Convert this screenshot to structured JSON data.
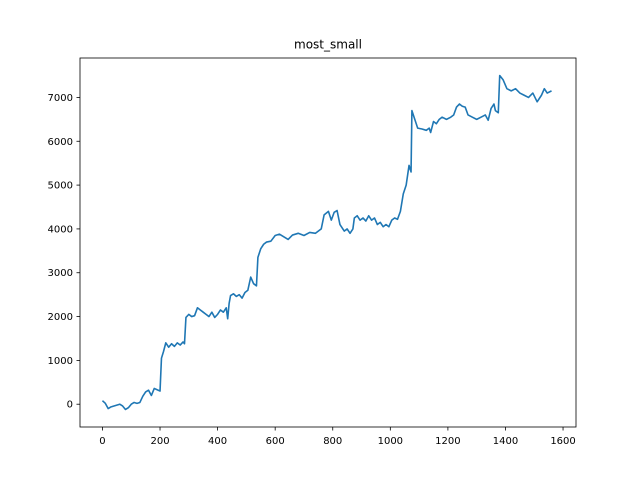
{
  "chart_data": {
    "type": "line",
    "title": "most_small",
    "xlabel": "",
    "ylabel": "",
    "xlim": [
      -78,
      1645
    ],
    "ylim": [
      -520,
      7900
    ],
    "xticks": [
      0,
      200,
      400,
      600,
      800,
      1000,
      1200,
      1400,
      1600
    ],
    "yticks": [
      0,
      1000,
      2000,
      3000,
      4000,
      5000,
      6000,
      7000
    ],
    "grid": false,
    "line_color": "#1f77b4",
    "series": [
      {
        "points": [
          [
            0,
            80
          ],
          [
            10,
            20
          ],
          [
            20,
            -100
          ],
          [
            30,
            -60
          ],
          [
            40,
            -40
          ],
          [
            50,
            -20
          ],
          [
            60,
            0
          ],
          [
            70,
            -40
          ],
          [
            80,
            -120
          ],
          [
            90,
            -80
          ],
          [
            100,
            0
          ],
          [
            110,
            40
          ],
          [
            120,
            20
          ],
          [
            130,
            40
          ],
          [
            140,
            180
          ],
          [
            150,
            280
          ],
          [
            160,
            320
          ],
          [
            170,
            200
          ],
          [
            180,
            360
          ],
          [
            190,
            330
          ],
          [
            200,
            300
          ],
          [
            205,
            1050
          ],
          [
            212,
            1200
          ],
          [
            220,
            1400
          ],
          [
            230,
            1300
          ],
          [
            240,
            1380
          ],
          [
            250,
            1320
          ],
          [
            260,
            1400
          ],
          [
            270,
            1350
          ],
          [
            280,
            1420
          ],
          [
            285,
            1380
          ],
          [
            290,
            1980
          ],
          [
            300,
            2050
          ],
          [
            310,
            2000
          ],
          [
            320,
            2020
          ],
          [
            330,
            2200
          ],
          [
            340,
            2150
          ],
          [
            350,
            2100
          ],
          [
            360,
            2050
          ],
          [
            370,
            2000
          ],
          [
            380,
            2100
          ],
          [
            390,
            1980
          ],
          [
            400,
            2050
          ],
          [
            410,
            2150
          ],
          [
            420,
            2100
          ],
          [
            430,
            2200
          ],
          [
            435,
            1950
          ],
          [
            440,
            2300
          ],
          [
            445,
            2480
          ],
          [
            455,
            2520
          ],
          [
            465,
            2460
          ],
          [
            475,
            2500
          ],
          [
            485,
            2420
          ],
          [
            495,
            2550
          ],
          [
            505,
            2600
          ],
          [
            515,
            2900
          ],
          [
            525,
            2750
          ],
          [
            535,
            2700
          ],
          [
            540,
            3350
          ],
          [
            550,
            3550
          ],
          [
            560,
            3650
          ],
          [
            570,
            3700
          ],
          [
            585,
            3720
          ],
          [
            600,
            3850
          ],
          [
            615,
            3880
          ],
          [
            630,
            3820
          ],
          [
            645,
            3760
          ],
          [
            660,
            3860
          ],
          [
            680,
            3900
          ],
          [
            700,
            3850
          ],
          [
            720,
            3920
          ],
          [
            740,
            3900
          ],
          [
            760,
            4000
          ],
          [
            770,
            4320
          ],
          [
            785,
            4400
          ],
          [
            795,
            4200
          ],
          [
            805,
            4380
          ],
          [
            815,
            4420
          ],
          [
            825,
            4100
          ],
          [
            840,
            3950
          ],
          [
            850,
            4000
          ],
          [
            860,
            3900
          ],
          [
            870,
            4000
          ],
          [
            875,
            4250
          ],
          [
            885,
            4300
          ],
          [
            895,
            4200
          ],
          [
            905,
            4250
          ],
          [
            915,
            4180
          ],
          [
            925,
            4300
          ],
          [
            935,
            4200
          ],
          [
            945,
            4250
          ],
          [
            955,
            4100
          ],
          [
            965,
            4150
          ],
          [
            975,
            4050
          ],
          [
            985,
            4100
          ],
          [
            995,
            4050
          ],
          [
            1005,
            4200
          ],
          [
            1015,
            4250
          ],
          [
            1025,
            4220
          ],
          [
            1035,
            4400
          ],
          [
            1045,
            4800
          ],
          [
            1055,
            5000
          ],
          [
            1065,
            5450
          ],
          [
            1072,
            5300
          ],
          [
            1075,
            6700
          ],
          [
            1085,
            6500
          ],
          [
            1095,
            6300
          ],
          [
            1110,
            6280
          ],
          [
            1125,
            6250
          ],
          [
            1135,
            6300
          ],
          [
            1140,
            6200
          ],
          [
            1150,
            6450
          ],
          [
            1160,
            6400
          ],
          [
            1170,
            6500
          ],
          [
            1180,
            6550
          ],
          [
            1195,
            6500
          ],
          [
            1210,
            6550
          ],
          [
            1220,
            6600
          ],
          [
            1230,
            6780
          ],
          [
            1240,
            6850
          ],
          [
            1250,
            6800
          ],
          [
            1260,
            6780
          ],
          [
            1270,
            6600
          ],
          [
            1285,
            6550
          ],
          [
            1300,
            6500
          ],
          [
            1315,
            6550
          ],
          [
            1330,
            6600
          ],
          [
            1340,
            6480
          ],
          [
            1350,
            6750
          ],
          [
            1360,
            6850
          ],
          [
            1365,
            6700
          ],
          [
            1375,
            6650
          ],
          [
            1380,
            7500
          ],
          [
            1392,
            7400
          ],
          [
            1405,
            7200
          ],
          [
            1420,
            7150
          ],
          [
            1435,
            7200
          ],
          [
            1450,
            7100
          ],
          [
            1465,
            7050
          ],
          [
            1480,
            7000
          ],
          [
            1495,
            7100
          ],
          [
            1510,
            6900
          ],
          [
            1525,
            7050
          ],
          [
            1535,
            7200
          ],
          [
            1545,
            7100
          ],
          [
            1560,
            7150
          ]
        ]
      }
    ]
  }
}
